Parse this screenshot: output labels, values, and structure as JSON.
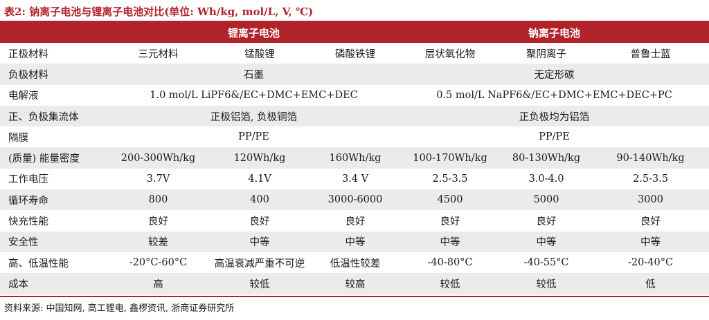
{
  "caption": "表2:  钠离子电池与锂离子电池对比(单位:  Wh/kg, mol/L, V, ℃)",
  "header": {
    "lithium": "锂离子电池",
    "sodium": "钠离子电池"
  },
  "rows": {
    "material": {
      "label": "正极材料",
      "cells": [
        "三元材料",
        "锰酸锂",
        "磷酸铁锂",
        "层状氧化物",
        "聚阴离子",
        "普鲁士蓝"
      ]
    },
    "anode": {
      "label": "负极材料",
      "lithium": "石墨",
      "sodium": "无定形碳"
    },
    "electrolyte": {
      "label": "电解液",
      "lithium": "1.0 mol/L LiPF6&/EC+DMC+EMC+DEC",
      "sodium": "0.5 mol/L NaPF6&/EC+DMC+EMC+DEC+PC"
    },
    "collector": {
      "label": "正、负极集流体",
      "lithium": "正极铝箔, 负极铜箔",
      "sodium": "正负极均为铝箔"
    },
    "separator": {
      "label": "隔膜",
      "lithium": "PP/PE",
      "sodium": "PP/PE"
    },
    "energy": {
      "label": "(质量) 能量密度",
      "cells": [
        "200-300Wh/kg",
        "120Wh/kg",
        "160Wh/kg",
        "100-170Wh/kg",
        "80-130Wh/kg",
        "90-140Wh/kg"
      ]
    },
    "voltage": {
      "label": "工作电压",
      "cells": [
        "3.7V",
        "4.1V",
        "3.4 V",
        "2.5-3.5",
        "3.0-4.0",
        "2.5-3.5"
      ]
    },
    "cycle": {
      "label": "循环寿命",
      "cells": [
        "800",
        "400",
        "3000-6000",
        "4500",
        "5000",
        "3000"
      ]
    },
    "fastcharge": {
      "label": "快充性能",
      "cells": [
        "良好",
        "良好",
        "良好",
        "良好",
        "良好",
        "良好"
      ]
    },
    "safety": {
      "label": "安全性",
      "cells": [
        "较差",
        "中等",
        "中等",
        "中等",
        "中等",
        "中等"
      ]
    },
    "temperature": {
      "label": "高、低温性能",
      "cells": [
        "-20°C-60°C",
        "高温衰减严重不可逆",
        "低温性较差",
        "-40-80°C",
        "-40-55°C",
        "-20-40°C"
      ]
    },
    "cost": {
      "label": "成本",
      "cells": [
        "高",
        "较低",
        "较高",
        "较低",
        "较低",
        "低"
      ]
    }
  },
  "source": "资料来源:  中国知网, 高工锂电, 鑫椤资讯, 浙商证券研究所"
}
